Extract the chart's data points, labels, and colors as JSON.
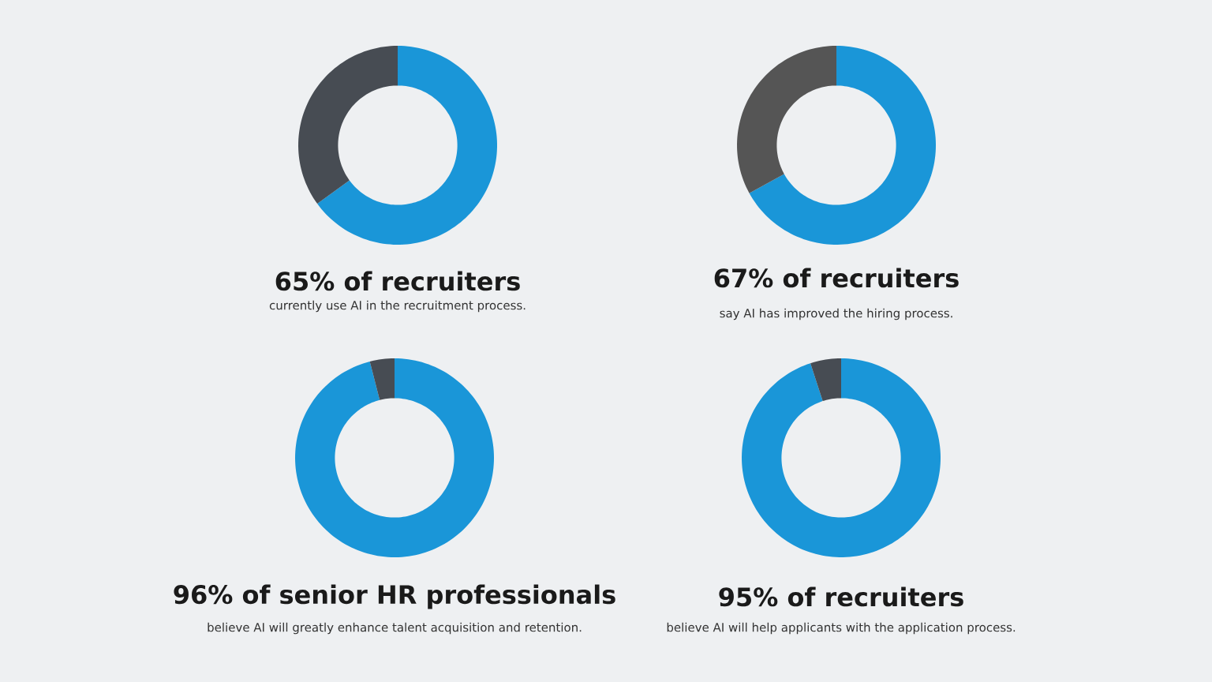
{
  "chart_data": [
    {
      "type": "donut",
      "title": "65% of recruiters",
      "subtitle": "currently use AI in the recruitment process.",
      "categories": [
        null,
        null
      ],
      "values": [
        65,
        35
      ],
      "colors": [
        "#1a96d8",
        "#474c53"
      ]
    },
    {
      "type": "donut",
      "title": "67% of recruiters",
      "subtitle": "say AI has improved the hiring process.",
      "categories": [
        null,
        null
      ],
      "values": [
        67,
        33
      ],
      "colors": [
        "#1a96d8",
        "#555555"
      ]
    },
    {
      "type": "donut",
      "title": "96% of senior HR professionals",
      "subtitle": "believe AI will greatly enhance talent acquisition and retention.",
      "categories": [
        null,
        null
      ],
      "values": [
        96,
        4
      ],
      "colors": [
        "#1a96d8",
        "#474c53"
      ]
    },
    {
      "type": "donut",
      "title": "95% of recruiters",
      "subtitle": "believe AI will help applicants with the application process.",
      "categories": [
        null,
        null
      ],
      "values": [
        95,
        5
      ],
      "colors": [
        "#1a96d8",
        "#474c53"
      ]
    }
  ]
}
